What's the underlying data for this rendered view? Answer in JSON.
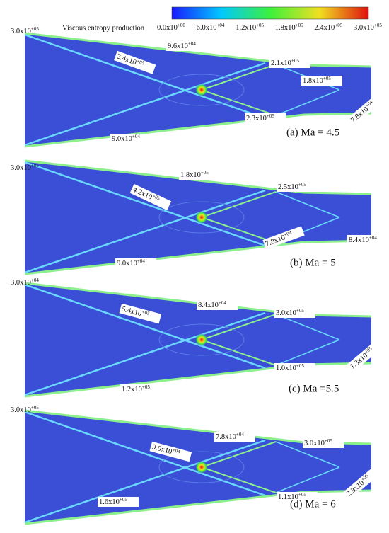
{
  "colorbar": {
    "title": "Viscous entropy production",
    "ticks": [
      {
        "base": "0.0x10",
        "exp": "+00"
      },
      {
        "base": "6.0x10",
        "exp": "+04"
      },
      {
        "base": "1.2x10",
        "exp": "+05"
      },
      {
        "base": "1.8x10",
        "exp": "+05"
      },
      {
        "base": "2.4x10",
        "exp": "+05"
      },
      {
        "base": "3.0x10",
        "exp": "+05"
      }
    ]
  },
  "panels": [
    {
      "caption": "(a) Ma = 4.5",
      "labels": [
        {
          "base": "3.0x10",
          "exp": "+05"
        },
        {
          "base": "9.6x10",
          "exp": "+04"
        },
        {
          "base": "2.4x10",
          "exp": "+05"
        },
        {
          "base": "2.1x10",
          "exp": "+05"
        },
        {
          "base": "1.8x10",
          "exp": "+05"
        },
        {
          "base": "2.3x10",
          "exp": "+05"
        },
        {
          "base": "9.0x10",
          "exp": "+04"
        },
        {
          "base": "7.8x10",
          "exp": "+04"
        }
      ]
    },
    {
      "caption": "(b) Ma = 5",
      "labels": [
        {
          "base": "3.0x10",
          "exp": "+05"
        },
        {
          "base": "1.8x10",
          "exp": "+05"
        },
        {
          "base": "4.2x10",
          "exp": "+05"
        },
        {
          "base": "2.5x10",
          "exp": "+05"
        },
        {
          "base": "7.8x10",
          "exp": "+04"
        },
        {
          "base": "8.4x10",
          "exp": "+04"
        },
        {
          "base": "9.0x10",
          "exp": "+04"
        }
      ]
    },
    {
      "caption": "(c) Ma =5.5",
      "labels": [
        {
          "base": "3.0x10",
          "exp": "+04"
        },
        {
          "base": "8.4x10",
          "exp": "+04"
        },
        {
          "base": "5.4x10",
          "exp": "+05"
        },
        {
          "base": "3.0x10",
          "exp": "+05"
        },
        {
          "base": "1.0x10",
          "exp": "+05"
        },
        {
          "base": "1.3x10",
          "exp": "+05"
        },
        {
          "base": "1.2x10",
          "exp": "+05"
        }
      ]
    },
    {
      "caption": "(d) Ma = 6",
      "labels": [
        {
          "base": "3.0x10",
          "exp": "+05"
        },
        {
          "base": "7.8x10",
          "exp": "+04"
        },
        {
          "base": "9.0x10",
          "exp": "+04"
        },
        {
          "base": "3.0x10",
          "exp": "+05"
        },
        {
          "base": "1.1x10",
          "exp": "+05"
        },
        {
          "base": "2.3x10",
          "exp": "+05"
        },
        {
          "base": "1.6x10",
          "exp": "+05"
        }
      ]
    }
  ]
}
